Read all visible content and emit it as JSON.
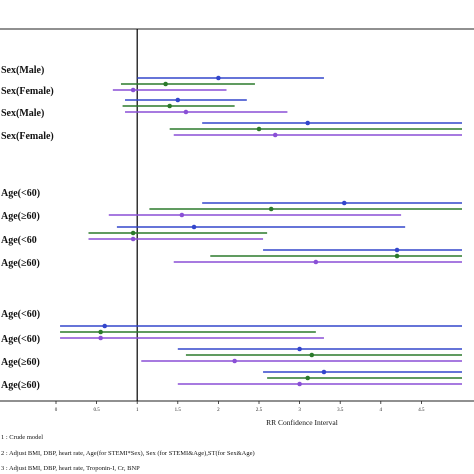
{
  "chart_data": {
    "type": "forest",
    "xlabel": "RR Confidence Interval",
    "xlim": [
      0,
      5
    ],
    "x_ticks": [
      "0",
      "0.5",
      "1",
      "1.5",
      "2",
      "2.5",
      "3",
      "3.5",
      "4",
      "4.5"
    ],
    "x_tick_values": [
      0,
      0.5,
      1,
      1.5,
      2,
      2.5,
      3,
      3.5,
      4,
      4.5
    ],
    "reference_line": 1,
    "models": [
      {
        "key": "m1",
        "color": "#3346cc"
      },
      {
        "key": "m2",
        "color": "#2b7a2b"
      },
      {
        "key": "m3",
        "color": "#8a4fd6"
      }
    ],
    "groups": [
      {
        "label": "Sex(Male)",
        "rows": []
      },
      {
        "label": "Sex(Female)",
        "rows": [
          {
            "model": "m1",
            "est": 2.0,
            "lo": 1.0,
            "hi": 3.3
          },
          {
            "model": "m2",
            "est": 1.35,
            "lo": 0.8,
            "hi": 2.45
          },
          {
            "model": "m3",
            "est": 0.95,
            "lo": 0.7,
            "hi": 2.1
          }
        ]
      },
      {
        "label": "Sex(Male)",
        "rows": [
          {
            "model": "m1",
            "est": 1.5,
            "lo": 0.85,
            "hi": 2.35
          },
          {
            "model": "m2",
            "est": 1.4,
            "lo": 0.82,
            "hi": 2.2
          },
          {
            "model": "m3",
            "est": 1.6,
            "lo": 0.85,
            "hi": 2.85
          }
        ]
      },
      {
        "label": "Sex(Female)",
        "rows": [
          {
            "model": "m1",
            "est": 3.1,
            "lo": 1.8,
            "hi": 5.0
          },
          {
            "model": "m2",
            "est": 2.5,
            "lo": 1.4,
            "hi": 5.0
          },
          {
            "model": "m3",
            "est": 2.7,
            "lo": 1.45,
            "hi": 5.0
          }
        ]
      },
      {
        "label": "Age(<60)",
        "rows": []
      },
      {
        "label": "Age(≥60)",
        "rows": [
          {
            "model": "m1",
            "est": 3.55,
            "lo": 1.8,
            "hi": 5.0
          },
          {
            "model": "m2",
            "est": 2.65,
            "lo": 1.15,
            "hi": 5.0
          },
          {
            "model": "m3",
            "est": 1.55,
            "lo": 0.65,
            "hi": 4.25
          }
        ]
      },
      {
        "label": "Age(<60",
        "rows": [
          {
            "model": "m1",
            "est": 1.7,
            "lo": 0.75,
            "hi": 4.3
          },
          {
            "model": "m2",
            "est": 0.95,
            "lo": 0.4,
            "hi": 2.6
          },
          {
            "model": "m3",
            "est": 0.95,
            "lo": 0.4,
            "hi": 2.55
          }
        ]
      },
      {
        "label": "Age(≥60)",
        "rows": [
          {
            "model": "m1",
            "est": 4.2,
            "lo": 2.55,
            "hi": 5.0
          },
          {
            "model": "m2",
            "est": 4.2,
            "lo": 1.9,
            "hi": 5.0
          },
          {
            "model": "m3",
            "est": 3.2,
            "lo": 1.45,
            "hi": 5.0
          }
        ]
      },
      {
        "label": "Age(<60)",
        "rows": []
      },
      {
        "label": "Age(<60)",
        "rows": [
          {
            "model": "m1",
            "est": 0.6,
            "lo": 0.05,
            "hi": 5.0
          },
          {
            "model": "m2",
            "est": 0.55,
            "lo": 0.05,
            "hi": 3.2
          },
          {
            "model": "m3",
            "est": 0.55,
            "lo": 0.05,
            "hi": 3.3
          }
        ]
      },
      {
        "label": "Age(≥60)",
        "rows": [
          {
            "model": "m1",
            "est": 3.0,
            "lo": 1.5,
            "hi": 5.0
          },
          {
            "model": "m2",
            "est": 3.15,
            "lo": 1.6,
            "hi": 5.0
          },
          {
            "model": "m3",
            "est": 2.2,
            "lo": 1.05,
            "hi": 5.0
          }
        ]
      },
      {
        "label": "Age(≥60)",
        "rows": [
          {
            "model": "m1",
            "est": 3.3,
            "lo": 2.55,
            "hi": 5.0
          },
          {
            "model": "m2",
            "est": 3.1,
            "lo": 2.6,
            "hi": 5.0
          },
          {
            "model": "m3",
            "est": 3.0,
            "lo": 1.5,
            "hi": 5.0
          }
        ]
      }
    ],
    "footnotes": [
      "1 : Crude model",
      "2 : Adjust BMI, DBP, heart rate, Age(for STEMI*Sex), Sex (for STEMI&Age),ST(for Sex&Age)",
      "3 : Adjust BMI, DBP, heart rate, Troponin-I, Cr, BNP"
    ]
  }
}
